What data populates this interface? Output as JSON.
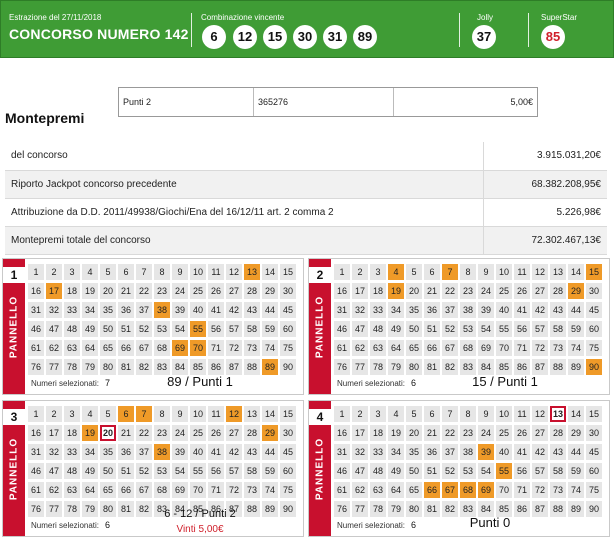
{
  "header": {
    "date_label": "Estrazione del 27/11/2018",
    "title": "CONCORSO NUMERO 142",
    "combination_label": "Combinazione vincente",
    "numbers": [
      "6",
      "12",
      "15",
      "30",
      "31",
      "89"
    ],
    "jolly_label": "Jolly",
    "jolly": "37",
    "superstar_label": "SuperStar",
    "superstar": "85"
  },
  "prize_row": {
    "category": "Punti 2",
    "winners": "365276",
    "amount": "5,00€"
  },
  "montepremi": {
    "title": "Montepremi",
    "rows": [
      {
        "label": "del concorso",
        "value": "3.915.031,20€"
      },
      {
        "label": "Riporto Jackpot concorso precedente",
        "value": "68.382.208,95€"
      },
      {
        "label": "Attribuzione da D.D. 2011/49938/Giochi/Ena del 16/12/11 art. 2 comma 2",
        "value": "5.226,98€"
      },
      {
        "label": "Montepremi totale del concorso",
        "value": "72.302.467,13€"
      }
    ]
  },
  "panels": [
    {
      "number": "1",
      "word": "PANNELLO",
      "selected_label": "Numeri selezionati:",
      "selected_count": "7",
      "selected": [
        13,
        17,
        38,
        55,
        69,
        70,
        89
      ],
      "winning": [],
      "note": "89 / Punti 1",
      "note_sub": ""
    },
    {
      "number": "2",
      "word": "PANNELLO",
      "selected_label": "Numeri selezionati:",
      "selected_count": "6",
      "selected": [
        4,
        7,
        15,
        19,
        29,
        90
      ],
      "winning": [],
      "note": "15 / Punti 1",
      "note_sub": ""
    },
    {
      "number": "3",
      "word": "PANNELLO",
      "selected_label": "Numeri selezionati:",
      "selected_count": "6",
      "selected": [
        6,
        7,
        12,
        19,
        29,
        38
      ],
      "winning": [
        20
      ],
      "note": "6 - 12 / Punti 2",
      "note_sub": "Vinti 5,00€"
    },
    {
      "number": "4",
      "word": "PANNELLO",
      "selected_label": "Numeri selezionati:",
      "selected_count": "6",
      "selected": [
        39,
        55,
        66,
        67,
        68,
        69
      ],
      "winning": [
        13
      ],
      "note": "Punti 0",
      "note_sub": ""
    }
  ],
  "colors": {
    "banner_green": "#3f9c35",
    "panel_red": "#c8102e",
    "selected_orange": "#ef9a28",
    "superstar_red": "#d0202b"
  }
}
